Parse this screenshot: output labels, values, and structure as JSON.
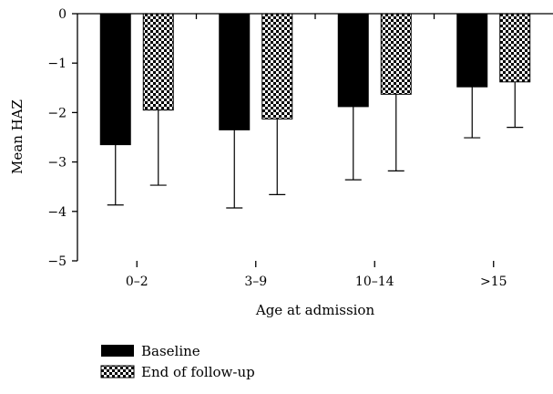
{
  "chart_data": {
    "type": "bar",
    "xlabel": "Age at admission",
    "ylabel": "Mean HAZ",
    "ylim": [
      -5,
      0
    ],
    "yticks": [
      0,
      -1,
      -2,
      -3,
      -4,
      -5
    ],
    "ytick_labels": [
      "0",
      "−1",
      "−2",
      "−3",
      "−4",
      "−5"
    ],
    "categories": [
      "0–2",
      "3–9",
      "10–14",
      ">15"
    ],
    "series": [
      {
        "name": "Baseline",
        "fill": "solid",
        "color": "#000000",
        "values": [
          -2.65,
          -2.35,
          -1.88,
          -1.48
        ],
        "error": [
          1.22,
          1.58,
          1.48,
          1.03
        ]
      },
      {
        "name": "End of follow-up",
        "fill": "checkerboard",
        "color": "#000000",
        "values": [
          -1.95,
          -2.13,
          -1.63,
          -1.38
        ],
        "error": [
          1.52,
          1.53,
          1.55,
          0.92
        ]
      }
    ],
    "error_bar_direction": "down",
    "grid": false,
    "legend_position": "bottom-left"
  }
}
